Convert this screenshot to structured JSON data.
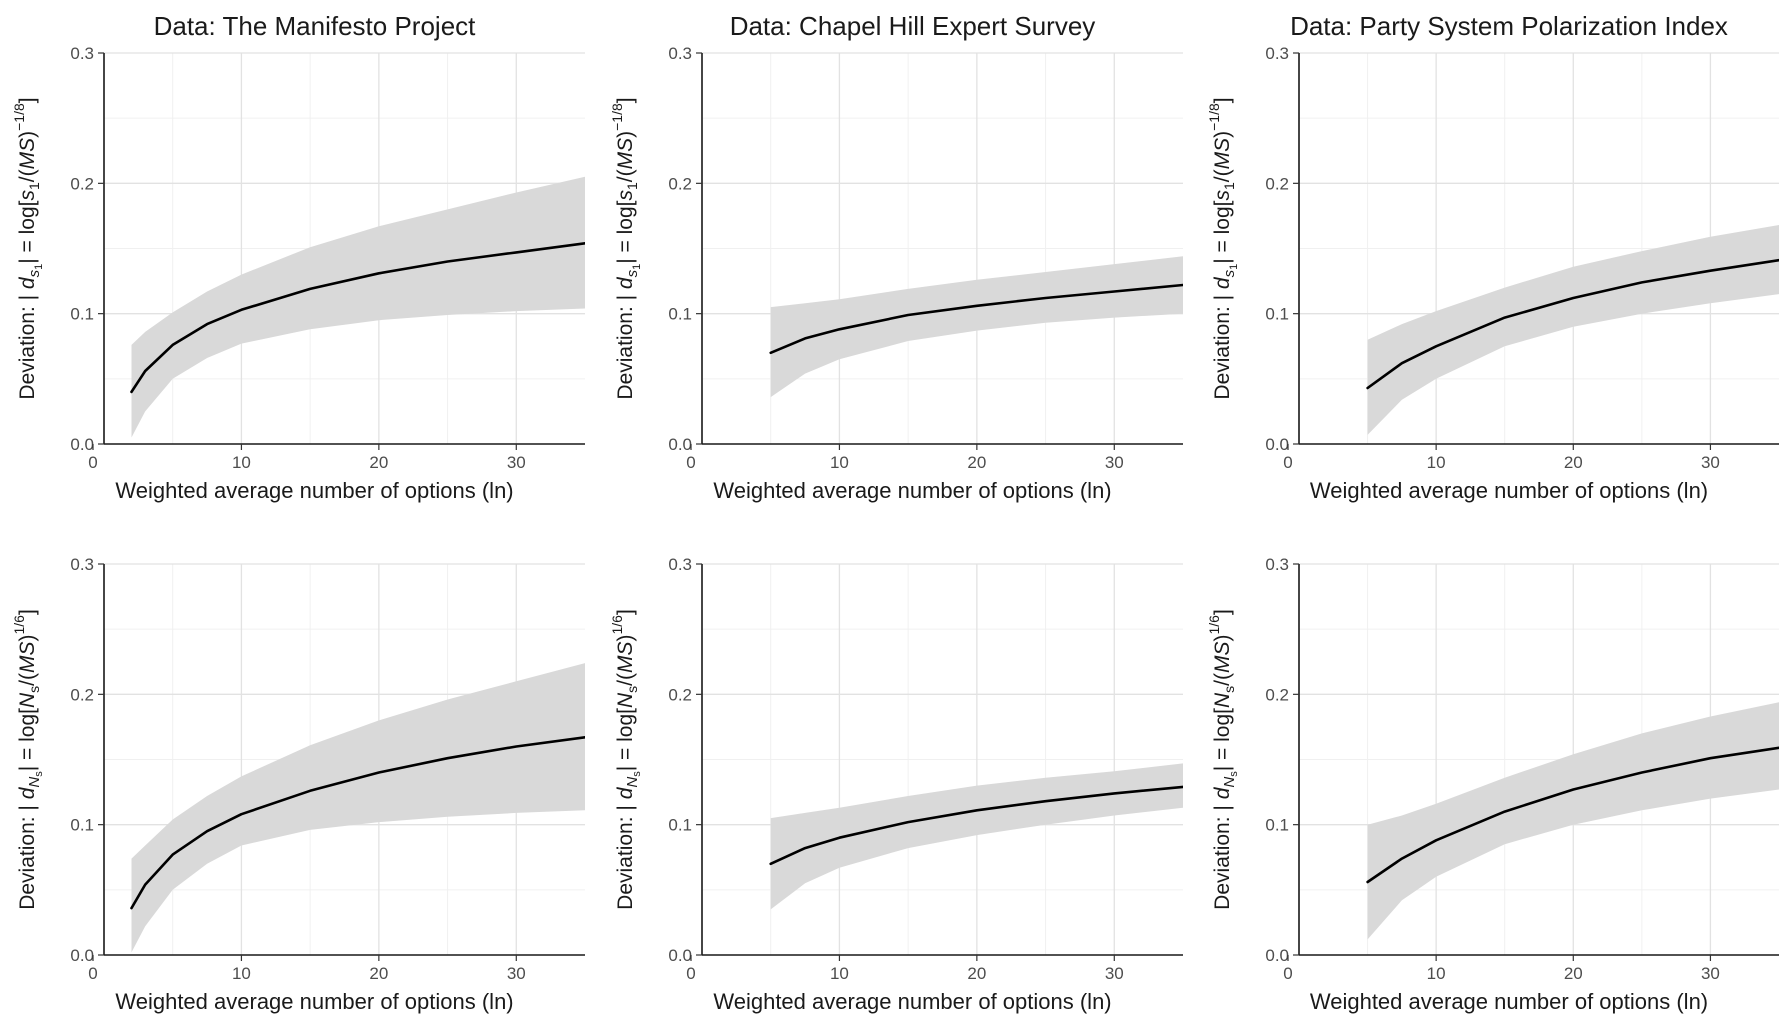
{
  "chart_data": [
    {
      "type": "line",
      "title": "Data: The Manifesto Project",
      "xlabel": "Weighted average number of options (ln)",
      "ylabel": {
        "prefix": "Deviation: | ",
        "var": "d",
        "sub": "s",
        "subsub": "1",
        "mid": "| = log[",
        "num": "s",
        "numsub": "1",
        "div": "/(",
        "ms": "MS",
        "close": ")",
        "exp": "−1/8",
        "end": "]"
      },
      "xlim": [
        0,
        35
      ],
      "ylim": [
        0,
        0.3
      ],
      "xticks": [
        0,
        10,
        20,
        30
      ],
      "yticks": [
        0.0,
        0.1,
        0.2,
        0.3
      ],
      "ytick_labels": [
        "0.0",
        "0.1",
        "0.2",
        "0.3"
      ],
      "grid": true,
      "x": [
        2,
        3,
        5,
        7.5,
        10,
        15,
        20,
        25,
        30,
        35
      ],
      "y": [
        0.04,
        0.056,
        0.076,
        0.092,
        0.103,
        0.119,
        0.131,
        0.14,
        0.147,
        0.154
      ],
      "lower": [
        0.005,
        0.025,
        0.05,
        0.066,
        0.077,
        0.088,
        0.095,
        0.099,
        0.102,
        0.104
      ],
      "upper": [
        0.076,
        0.086,
        0.101,
        0.117,
        0.13,
        0.151,
        0.167,
        0.18,
        0.193,
        0.205
      ]
    },
    {
      "type": "line",
      "title": "Data: Chapel Hill Expert Survey",
      "xlabel": "Weighted average number of options (ln)",
      "ylabel": {
        "prefix": "Deviation: | ",
        "var": "d",
        "sub": "s",
        "subsub": "1",
        "mid": "| = log[",
        "num": "s",
        "numsub": "1",
        "div": "/(",
        "ms": "MS",
        "close": ")",
        "exp": "−1/8",
        "end": "]"
      },
      "xlim": [
        0,
        35
      ],
      "ylim": [
        0,
        0.3
      ],
      "xticks": [
        0,
        10,
        20,
        30
      ],
      "yticks": [
        0.0,
        0.1,
        0.2,
        0.3
      ],
      "ytick_labels": [
        "0.0",
        "0.1",
        "0.2",
        "0.3"
      ],
      "grid": true,
      "x": [
        5,
        7.5,
        10,
        15,
        20,
        25,
        30,
        35
      ],
      "y": [
        0.07,
        0.081,
        0.088,
        0.099,
        0.106,
        0.112,
        0.117,
        0.122
      ],
      "lower": [
        0.036,
        0.054,
        0.065,
        0.079,
        0.087,
        0.093,
        0.097,
        0.1
      ],
      "upper": [
        0.105,
        0.108,
        0.111,
        0.119,
        0.126,
        0.132,
        0.138,
        0.144
      ]
    },
    {
      "type": "line",
      "title": "Data: Party System Polarization Index",
      "xlabel": "Weighted average number of options (ln)",
      "ylabel": {
        "prefix": "Deviation: | ",
        "var": "d",
        "sub": "s",
        "subsub": "1",
        "mid": "| = log[",
        "num": "s",
        "numsub": "1",
        "div": "/(",
        "ms": "MS",
        "close": ")",
        "exp": "−1/8",
        "end": "]"
      },
      "xlim": [
        0,
        35
      ],
      "ylim": [
        0,
        0.3
      ],
      "xticks": [
        0,
        10,
        20,
        30
      ],
      "yticks": [
        0.0,
        0.1,
        0.2,
        0.3
      ],
      "ytick_labels": [
        "0.0",
        "0.1",
        "0.2",
        "0.3"
      ],
      "grid": true,
      "x": [
        5,
        7.5,
        10,
        15,
        20,
        25,
        30,
        35
      ],
      "y": [
        0.043,
        0.062,
        0.075,
        0.097,
        0.112,
        0.124,
        0.133,
        0.141
      ],
      "lower": [
        0.007,
        0.034,
        0.05,
        0.075,
        0.09,
        0.1,
        0.108,
        0.115
      ],
      "upper": [
        0.08,
        0.092,
        0.102,
        0.12,
        0.136,
        0.148,
        0.159,
        0.168
      ]
    },
    {
      "type": "line",
      "title": "",
      "xlabel": "Weighted average number of options (ln)",
      "ylabel": {
        "prefix": "Deviation: | ",
        "var": "d",
        "sub": "N",
        "subsub": "s",
        "mid": "| = log[",
        "num": "N",
        "numsub": "s",
        "div": "/(",
        "ms": "MS",
        "close": ")",
        "exp": "1/6",
        "end": "]"
      },
      "xlim": [
        0,
        35
      ],
      "ylim": [
        0,
        0.3
      ],
      "xticks": [
        0,
        10,
        20,
        30
      ],
      "yticks": [
        0.0,
        0.1,
        0.2,
        0.3
      ],
      "ytick_labels": [
        "0.0",
        "0.1",
        "0.2",
        "0.3"
      ],
      "grid": true,
      "x": [
        2,
        3,
        5,
        7.5,
        10,
        15,
        20,
        25,
        30,
        35
      ],
      "y": [
        0.036,
        0.054,
        0.077,
        0.095,
        0.108,
        0.126,
        0.14,
        0.151,
        0.16,
        0.167
      ],
      "lower": [
        0.002,
        0.022,
        0.05,
        0.07,
        0.084,
        0.096,
        0.102,
        0.106,
        0.109,
        0.111
      ],
      "upper": [
        0.074,
        0.084,
        0.104,
        0.122,
        0.137,
        0.161,
        0.18,
        0.196,
        0.21,
        0.224
      ]
    },
    {
      "type": "line",
      "title": "",
      "xlabel": "Weighted average number of options (ln)",
      "ylabel": {
        "prefix": "Deviation: | ",
        "var": "d",
        "sub": "N",
        "subsub": "s",
        "mid": "| = log[",
        "num": "N",
        "numsub": "s",
        "div": "/(",
        "ms": "MS",
        "close": ")",
        "exp": "1/6",
        "end": "]"
      },
      "xlim": [
        0,
        35
      ],
      "ylim": [
        0,
        0.3
      ],
      "xticks": [
        0,
        10,
        20,
        30
      ],
      "yticks": [
        0.0,
        0.1,
        0.2,
        0.3
      ],
      "ytick_labels": [
        "0.0",
        "0.1",
        "0.2",
        "0.3"
      ],
      "grid": true,
      "x": [
        5,
        7.5,
        10,
        15,
        20,
        25,
        30,
        35
      ],
      "y": [
        0.07,
        0.082,
        0.09,
        0.102,
        0.111,
        0.118,
        0.124,
        0.129
      ],
      "lower": [
        0.035,
        0.055,
        0.067,
        0.082,
        0.092,
        0.1,
        0.107,
        0.113
      ],
      "upper": [
        0.105,
        0.109,
        0.113,
        0.122,
        0.13,
        0.136,
        0.141,
        0.147
      ]
    },
    {
      "type": "line",
      "title": "",
      "xlabel": "Weighted average number of options (ln)",
      "ylabel": {
        "prefix": "Deviation: | ",
        "var": "d",
        "sub": "N",
        "subsub": "s",
        "mid": "| = log[",
        "num": "N",
        "numsub": "s",
        "div": "/(",
        "ms": "MS",
        "close": ")",
        "exp": "1/6",
        "end": "]"
      },
      "xlim": [
        0,
        35
      ],
      "ylim": [
        0,
        0.3
      ],
      "xticks": [
        0,
        10,
        20,
        30
      ],
      "yticks": [
        0.0,
        0.1,
        0.2,
        0.3
      ],
      "ytick_labels": [
        "0.0",
        "0.1",
        "0.2",
        "0.3"
      ],
      "grid": true,
      "x": [
        5,
        7.5,
        10,
        15,
        20,
        25,
        30,
        35
      ],
      "y": [
        0.056,
        0.074,
        0.088,
        0.11,
        0.127,
        0.14,
        0.151,
        0.159
      ],
      "lower": [
        0.012,
        0.042,
        0.06,
        0.085,
        0.1,
        0.111,
        0.12,
        0.127
      ],
      "upper": [
        0.1,
        0.107,
        0.116,
        0.136,
        0.154,
        0.17,
        0.183,
        0.194
      ]
    }
  ]
}
